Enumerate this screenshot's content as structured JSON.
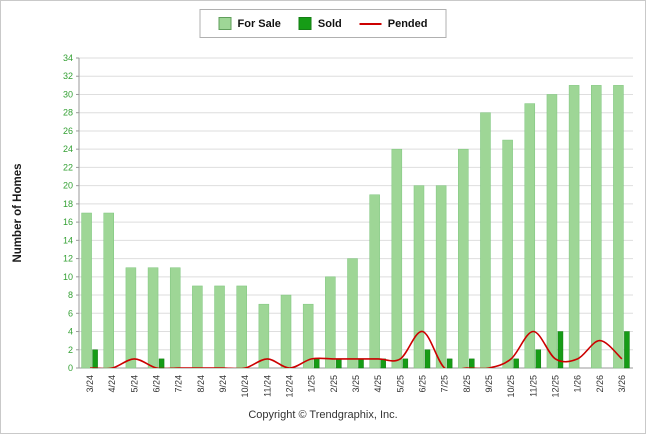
{
  "ylabel": "Number of Homes",
  "footer": "Copyright © Trendgraphix, Inc.",
  "legend": {
    "items": [
      {
        "label": "For Sale",
        "color": "#9ed696",
        "type": "bar"
      },
      {
        "label": "Sold",
        "color": "#169c16",
        "type": "bar"
      },
      {
        "label": "Pended",
        "color": "#cc0000",
        "type": "line"
      }
    ]
  },
  "axis": {
    "ytick_color": "#33a033",
    "xtick_color": "#333333",
    "grid_color": "#dedede",
    "axis_color": "#9a9a9a"
  },
  "chart_data": {
    "type": "bar",
    "categories": [
      "3/24",
      "4/24",
      "5/24",
      "6/24",
      "7/24",
      "8/24",
      "9/24",
      "10/24",
      "11/24",
      "12/24",
      "1/25",
      "2/25",
      "3/25",
      "4/25",
      "5/25",
      "6/25",
      "7/25",
      "8/25",
      "9/25",
      "10/25",
      "11/25",
      "12/25",
      "1/26",
      "2/26",
      "3/26"
    ],
    "series": [
      {
        "name": "For Sale",
        "render": "bar",
        "color": "#9ed696",
        "border": "#7cc57c",
        "values": [
          17,
          17,
          11,
          11,
          11,
          9,
          9,
          9,
          7,
          8,
          7,
          10,
          12,
          19,
          24,
          20,
          20,
          24,
          28,
          25,
          29,
          30,
          31,
          31,
          31
        ]
      },
      {
        "name": "Sold",
        "render": "bar",
        "color": "#169c16",
        "border": "#0e7a0e",
        "values": [
          2,
          0,
          0,
          1,
          0,
          0,
          0,
          0,
          0,
          0,
          1,
          1,
          1,
          1,
          1,
          2,
          1,
          1,
          0,
          1,
          2,
          4,
          0,
          0,
          4
        ]
      },
      {
        "name": "Pended",
        "render": "line",
        "color": "#cc0000",
        "values": [
          0,
          0,
          1,
          0,
          0,
          0,
          0,
          0,
          1,
          0,
          1,
          1,
          1,
          1,
          1,
          4,
          0,
          0,
          0,
          1,
          4,
          1,
          1,
          3,
          1
        ]
      }
    ],
    "ylim": [
      0,
      34
    ],
    "ytick_step": 2,
    "grid": true,
    "legend_position": "top",
    "title": ""
  }
}
